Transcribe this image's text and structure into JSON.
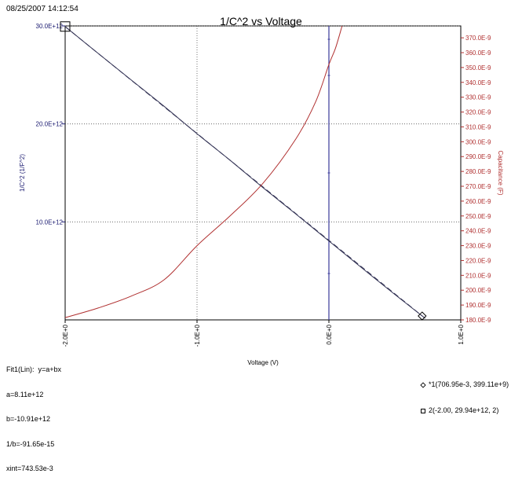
{
  "timestamp": "08/25/2007 14:12:54",
  "chart_data": {
    "type": "line",
    "title": "1/C^2 vs Voltage",
    "xlabel": "Voltage (V)",
    "ylabel_left": "1/C^2 (1/F^2)",
    "ylabel_right": "Capacitance (F)",
    "xlim": [
      -2.0,
      1.0
    ],
    "ylim_left": [
      0,
      30000000000000.0
    ],
    "ylim_right": [
      1.8e-07,
      3.78e-07
    ],
    "x_tick_labels": [
      "-2.0E+0",
      "-1.0E+0",
      "0.0E+0",
      "1.0E+0"
    ],
    "x_ticks": [
      -2.0,
      -1.0,
      0.0,
      1.0
    ],
    "y_left_tick_labels": [
      "10.0E+12",
      "20.0E+12",
      "30.0E+12"
    ],
    "y_left_ticks": [
      10000000000000.0,
      20000000000000.0,
      30000000000000.0
    ],
    "y_right_tick_labels": [
      "180.0E-9",
      "190.0E-9",
      "200.0E-9",
      "210.0E-9",
      "220.0E-9",
      "230.0E-9",
      "240.0E-9",
      "250.0E-9",
      "260.0E-9",
      "270.0E-9",
      "280.0E-9",
      "290.0E-9",
      "300.0E-9",
      "310.0E-9",
      "320.0E-9",
      "330.0E-9",
      "340.0E-9",
      "350.0E-9",
      "360.0E-9",
      "370.0E-9"
    ],
    "y_right_ticks": [
      1.8e-07,
      1.9e-07,
      2e-07,
      2.1e-07,
      2.2e-07,
      2.3e-07,
      2.4e-07,
      2.5e-07,
      2.6e-07,
      2.7e-07,
      2.8e-07,
      2.9e-07,
      3e-07,
      3.1e-07,
      3.2e-07,
      3.3e-07,
      3.4e-07,
      3.5e-07,
      3.6e-07,
      3.7e-07
    ],
    "grid": true,
    "series": [
      {
        "axis": "left",
        "color": "#333355",
        "x": [
          -2.0,
          -1.75,
          -1.5,
          -1.25,
          -1.0,
          -0.75,
          -0.5,
          -0.25,
          0.0,
          0.25,
          0.5,
          0.70695
        ],
        "y": [
          29940000000000.0,
          27200000000000.0,
          24500000000000.0,
          21800000000000.0,
          19000000000000.0,
          16300000000000.0,
          13500000000000.0,
          10800000000000.0,
          8050000000000.0,
          5300000000000.0,
          2600000000000.0,
          399000000000.0
        ]
      },
      {
        "axis": "left",
        "color": "#333355",
        "dashed": true,
        "x": [
          -2.0,
          0.74
        ],
        "y": [
          29930000000000.0,
          50000000000.0
        ]
      },
      {
        "axis": "right",
        "color": "#b03030",
        "x": [
          -2.0,
          -1.75,
          -1.5,
          -1.25,
          -1.0,
          -0.75,
          -0.5,
          -0.25,
          -0.1,
          0.0,
          0.05,
          0.1
        ],
        "y": [
          1.815e-07,
          1.88e-07,
          1.96e-07,
          2.07e-07,
          2.3e-07,
          2.5e-07,
          2.72e-07,
          3.02e-07,
          3.27e-07,
          3.52e-07,
          3.63e-07,
          3.78e-07
        ]
      }
    ],
    "cursor_line": {
      "x": 0.0,
      "color": "#3a3a9a"
    },
    "markers": [
      {
        "shape": "diamond",
        "x": 0.70695,
        "y": 399110000000.0
      },
      {
        "shape": "square",
        "x": -2.0,
        "y": 29940000000000.0
      }
    ]
  },
  "fit_box": {
    "lines": [
      "Fit1(Lin):  y=a+bx",
      "a=8.11e+12",
      "b=-10.91e+12",
      "1/b=-91.65e-15",
      "xint=743.53e-3"
    ]
  },
  "cursor_readouts": [
    {
      "marker": "diamond-icon",
      "text": "*1(706.95e-3, 399.11e+9)"
    },
    {
      "marker": "square-icon",
      "text": "2(-2.00, 29.94e+12, 2)"
    }
  ]
}
